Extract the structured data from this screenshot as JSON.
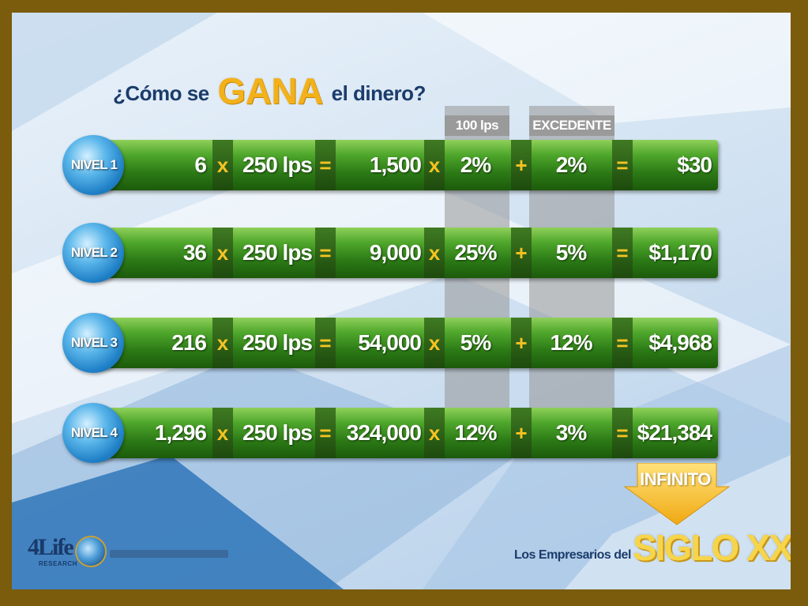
{
  "headline": {
    "prefix": "¿Cómo se",
    "highlight": "GANA",
    "suffix": "el dinero?"
  },
  "column_headers": {
    "col_100": "100 lps",
    "col_excedente": "EXCEDENTE"
  },
  "operators": {
    "times": "x",
    "equals": "=",
    "plus": "+"
  },
  "rows": [
    {
      "level": "NIVEL 1",
      "people": "6",
      "unit": "250 lps",
      "volume": "1,500",
      "pct_a": "2%",
      "pct_b": "2%",
      "result": "$30"
    },
    {
      "level": "NIVEL 2",
      "people": "36",
      "unit": "250 lps",
      "volume": "9,000",
      "pct_a": "25%",
      "pct_b": "5%",
      "result": "$1,170"
    },
    {
      "level": "NIVEL 3",
      "people": "216",
      "unit": "250 lps",
      "volume": "54,000",
      "pct_a": "5%",
      "pct_b": "12%",
      "result": "$4,968"
    },
    {
      "level": "NIVEL 4",
      "people": "1,296",
      "unit": "250 lps",
      "volume": "324,000",
      "pct_a": "12%",
      "pct_b": "3%",
      "result": "$21,384"
    }
  ],
  "infinito": "INFINITO",
  "footer": {
    "logo": "4Life",
    "logo_sub": "RESEARCH",
    "tagline": "Los Empresarios del",
    "tagline_big": "SIGLO XXI"
  },
  "colors": {
    "frame": "#7a5c0c",
    "bar_green": "#2c7a16",
    "operator_yellow": "#f6c323",
    "headline_gold": "#f3b11a",
    "title_navy": "#1b3c6b"
  }
}
